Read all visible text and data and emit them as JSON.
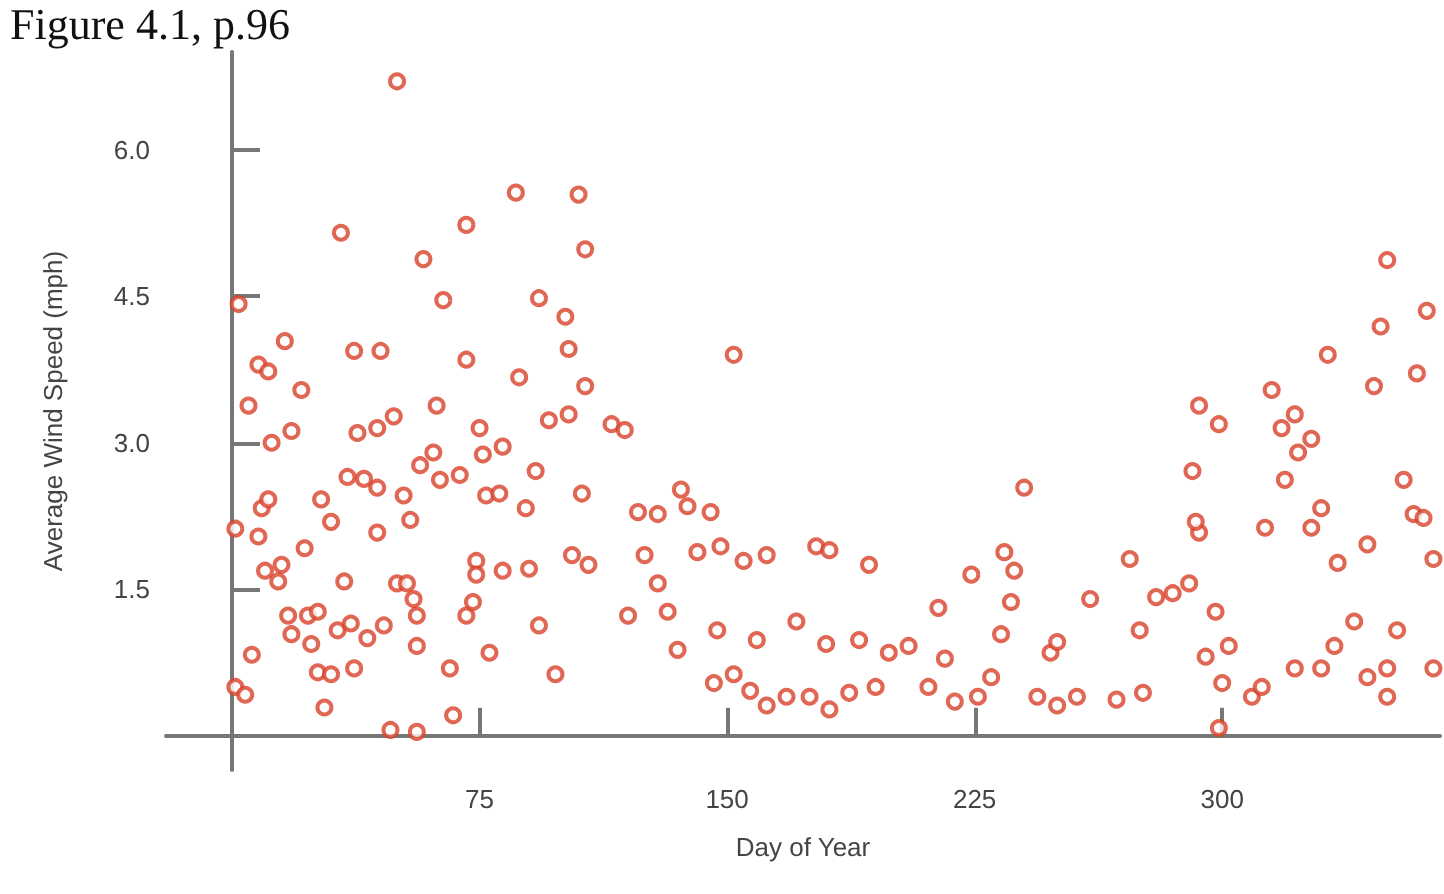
{
  "chart_data": {
    "type": "scatter",
    "title": "Figure 4.1, p.96",
    "xlabel": "Day of Year",
    "ylabel": "Average Wind Speed (mph)",
    "x": [
      2,
      1,
      4,
      6,
      1,
      8,
      5,
      8,
      11,
      16,
      21,
      12,
      18,
      9,
      11,
      10,
      15,
      14,
      22,
      17,
      23,
      26,
      18,
      24,
      26,
      30,
      28,
      27,
      30,
      34,
      32,
      36,
      41,
      37,
      33,
      37,
      45,
      38,
      44,
      49,
      35,
      40,
      44,
      44,
      50,
      53,
      55,
      56,
      46,
      56,
      48,
      56,
      50,
      58,
      64,
      71,
      71,
      62,
      52,
      57,
      61,
      63,
      69,
      75,
      54,
      66,
      67,
      71,
      73,
      74,
      74,
      78,
      82,
      77,
      81,
      76,
      86,
      82,
      87,
      93,
      101,
      105,
      107,
      102,
      96,
      102,
      92,
      89,
      90,
      93,
      98,
      107,
      115,
      119,
      106,
      103,
      108,
      123,
      125,
      120,
      129,
      129,
      138,
      136,
      141,
      145,
      132,
      135,
      146,
      152,
      148,
      155,
      162,
      147,
      159,
      152,
      157,
      162,
      168,
      175,
      181,
      177,
      181,
      193,
      171,
      180,
      190,
      187,
      195,
      199,
      205,
      211,
      216,
      214,
      219,
      226,
      230,
      224,
      234,
      237,
      240,
      236,
      233,
      244,
      250,
      256,
      248,
      260,
      250,
      268,
      276,
      272,
      275,
      280,
      285,
      290,
      293,
      292,
      291,
      293,
      299,
      295,
      298,
      300,
      299,
      302,
      309,
      312,
      313,
      315,
      319,
      318,
      322,
      323,
      327,
      330,
      327,
      332,
      335,
      340,
      334,
      344,
      346,
      350,
      348,
      355,
      358,
      361,
      359,
      362,
      353,
      350,
      350,
      364,
      364,
      344,
      330,
      322
    ],
    "values": [
      4.42,
      0.5,
      0.42,
      0.83,
      2.12,
      2.04,
      3.38,
      3.8,
      3.73,
      4.04,
      3.54,
      3.0,
      3.12,
      2.33,
      2.42,
      1.69,
      1.75,
      1.58,
      1.92,
      1.23,
      1.23,
      1.27,
      1.04,
      0.94,
      0.65,
      0.63,
      0.29,
      2.42,
      2.19,
      1.58,
      1.08,
      1.15,
      1.0,
      0.69,
      5.15,
      3.94,
      3.94,
      3.1,
      3.15,
      3.27,
      2.65,
      2.63,
      2.54,
      2.08,
      1.56,
      1.56,
      1.4,
      1.23,
      1.13,
      0.92,
      0.06,
      0.04,
      6.7,
      4.88,
      4.46,
      5.23,
      3.85,
      3.38,
      2.46,
      2.77,
      2.9,
      2.62,
      2.67,
      3.15,
      2.21,
      0.69,
      0.21,
      1.23,
      1.37,
      1.79,
      1.65,
      0.85,
      1.69,
      2.46,
      2.48,
      2.88,
      5.56,
      2.96,
      3.67,
      4.48,
      4.29,
      5.54,
      4.98,
      3.96,
      3.23,
      3.29,
      2.71,
      2.33,
      1.71,
      1.13,
      0.63,
      3.58,
      3.19,
      3.13,
      2.48,
      1.85,
      1.75,
      2.29,
      1.85,
      1.23,
      1.56,
      2.27,
      2.35,
      2.52,
      1.88,
      2.29,
      1.27,
      0.88,
      0.54,
      3.9,
      1.94,
      1.79,
      1.85,
      1.08,
      0.98,
      0.63,
      0.46,
      0.31,
      0.4,
      0.4,
      0.27,
      1.94,
      1.9,
      1.75,
      1.17,
      0.94,
      0.98,
      0.44,
      0.5,
      0.85,
      0.92,
      0.5,
      0.79,
      1.31,
      0.35,
      0.4,
      0.6,
      1.65,
      1.88,
      1.69,
      2.54,
      1.37,
      1.04,
      0.4,
      0.31,
      0.4,
      0.85,
      1.4,
      0.96,
      0.37,
      0.44,
      1.81,
      1.08,
      1.42,
      1.46,
      1.56,
      2.08,
      2.19,
      2.71,
      3.38,
      3.19,
      0.81,
      1.27,
      0.54,
      0.08,
      0.92,
      0.4,
      0.5,
      2.13,
      3.54,
      2.62,
      3.15,
      3.29,
      2.9,
      3.04,
      2.33,
      2.13,
      3.9,
      1.77,
      1.17,
      0.92,
      1.96,
      3.58,
      4.87,
      4.19,
      2.62,
      2.27,
      2.23,
      3.71,
      4.35,
      1.08,
      0.69,
      0.4,
      1.81,
      0.69,
      0.6,
      0.69,
      0.69
    ],
    "color": "#d9412b",
    "marker": "circle",
    "grid": false,
    "xlim": [
      -20,
      366
    ],
    "xticks": [
      75,
      150,
      225,
      300
    ],
    "ylim": [
      -0.35,
      7.0
    ],
    "yticks": [
      {
        "value": 1.5,
        "label": "1.5"
      },
      {
        "value": 3,
        "label": "3.0"
      },
      {
        "value": 4.5,
        "label": "4.5"
      },
      {
        "value": 6,
        "label": "6.0"
      }
    ]
  }
}
